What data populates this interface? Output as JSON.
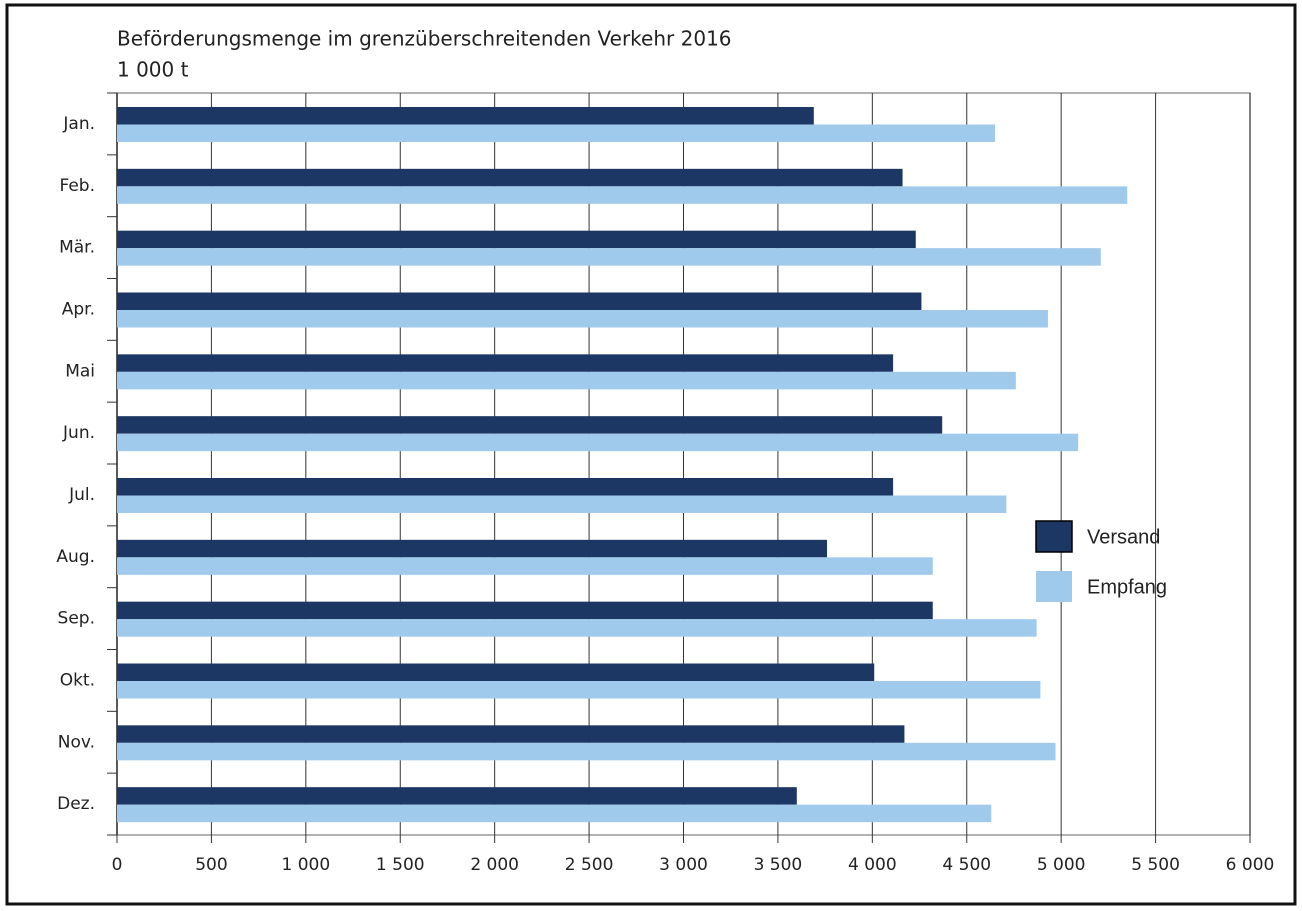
{
  "chart_data": {
    "type": "hbar",
    "title": "Beförderungsmenge im grenzüberschreitenden Verkehr 2016",
    "subtitle": "1 000 t",
    "categories": [
      "Jan.",
      "Feb.",
      "Mär.",
      "Apr.",
      "Mai",
      "Jun.",
      "Jul.",
      "Aug.",
      "Sep.",
      "Okt.",
      "Nov.",
      "Dez."
    ],
    "series": [
      {
        "name": "Versand",
        "color": "#1d3764",
        "values": [
          3690,
          4160,
          4230,
          4260,
          4110,
          4370,
          4110,
          3760,
          4320,
          4010,
          4170,
          3600
        ]
      },
      {
        "name": "Empfang",
        "color": "#9fcaec",
        "values": [
          4650,
          5350,
          5210,
          4930,
          4760,
          5090,
          4710,
          4320,
          4870,
          4890,
          4970,
          4630
        ]
      }
    ],
    "xlim": [
      0,
      6000
    ],
    "xticks": [
      0,
      500,
      {
        "value": 1000,
        "label": "1 000"
      },
      {
        "value": 1500,
        "label": "1 500"
      },
      {
        "value": 2000,
        "label": "2 000"
      },
      {
        "value": 2500,
        "label": "2 500"
      },
      {
        "value": 3000,
        "label": "3 000"
      },
      {
        "value": 3500,
        "label": "3 500"
      },
      {
        "value": 4000,
        "label": "4 000"
      },
      {
        "value": 4500,
        "label": "4 500"
      },
      {
        "value": 5000,
        "label": "5 000"
      },
      {
        "value": 5500,
        "label": "5 500"
      },
      {
        "value": 6000,
        "label": "6 000"
      }
    ],
    "grid": true,
    "legend": "right"
  }
}
